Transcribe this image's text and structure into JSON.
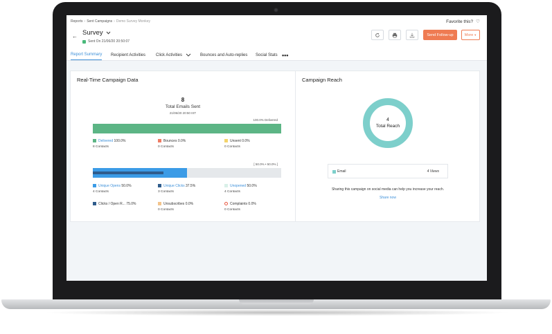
{
  "breadcrumb": {
    "items": [
      "Reports",
      "Sent Campaigns"
    ],
    "current": "Demo Survey Monkey"
  },
  "favorite": {
    "label": "Favorite this?"
  },
  "campaign": {
    "title": "Survey",
    "sent_on": "Sent On 21/06/20 20:50:07"
  },
  "actions": {
    "send_followup": "Send Follow-up",
    "more": "More"
  },
  "tabs": [
    {
      "label": "Report Summary"
    },
    {
      "label": "Recipient Activities"
    },
    {
      "label": "Click Activities"
    },
    {
      "label": "Bounces and Auto-replies"
    },
    {
      "label": "Social Stats"
    }
  ],
  "realtime": {
    "title": "Real-Time Campaign Data",
    "total": "8",
    "total_label": "Total Emails Sent",
    "total_date": "21/06/20 20:50 IST",
    "delivered_bar_label": "100.0% Delivered",
    "delivered_fraction": 1.0,
    "opens_bar_label": "[ 50.0% • 50.0% ]",
    "opens_fraction": 0.5,
    "clicks_fraction": 0.375,
    "stats1": [
      {
        "label": "Delivered",
        "value": "100.0%",
        "sub": "8 Contacts",
        "color": "#5cb585",
        "link": true
      },
      {
        "label": "Bounces",
        "value": "0.0%",
        "sub": "0 Contacts",
        "color": "#ef7b62",
        "link": false
      },
      {
        "label": "Unsent",
        "value": "0.0%",
        "sub": "0 Contacts",
        "color": "#f3d36b",
        "link": false
      }
    ],
    "stats2": [
      {
        "label": "Unique Opens",
        "value": "50.0%",
        "sub": "4 Contacts",
        "color": "#3b9be6",
        "link": true
      },
      {
        "label": "Unique Clicks",
        "value": "37.5%",
        "sub": "3 Contacts",
        "color": "#2f5c8c",
        "link": true
      },
      {
        "label": "Unopened",
        "value": "50.0%",
        "sub": "4 Contacts",
        "color": "#d9f0e8",
        "link": true
      }
    ],
    "stats3": [
      {
        "label": "Clicks / Open R...",
        "value": "75.0%",
        "sub": "",
        "color": "#2f5c8c",
        "link": false
      },
      {
        "label": "Unsubscribes",
        "value": "0.0%",
        "sub": "0 Contacts",
        "color": "#f3c48c",
        "link": false
      },
      {
        "label": "Complaints",
        "value": "0.0%",
        "sub": "0 Contacts",
        "color": "#e8563f",
        "link": false
      }
    ]
  },
  "reach": {
    "title": "Campaign Reach",
    "total": "4",
    "total_label": "Total Reach",
    "legend_name": "Email",
    "legend_views": "4 Views",
    "donut_color": "#7dcfcb",
    "share_text": "Sharing this campaign on social media can help you increase your reach.",
    "share_link": "Share now"
  }
}
